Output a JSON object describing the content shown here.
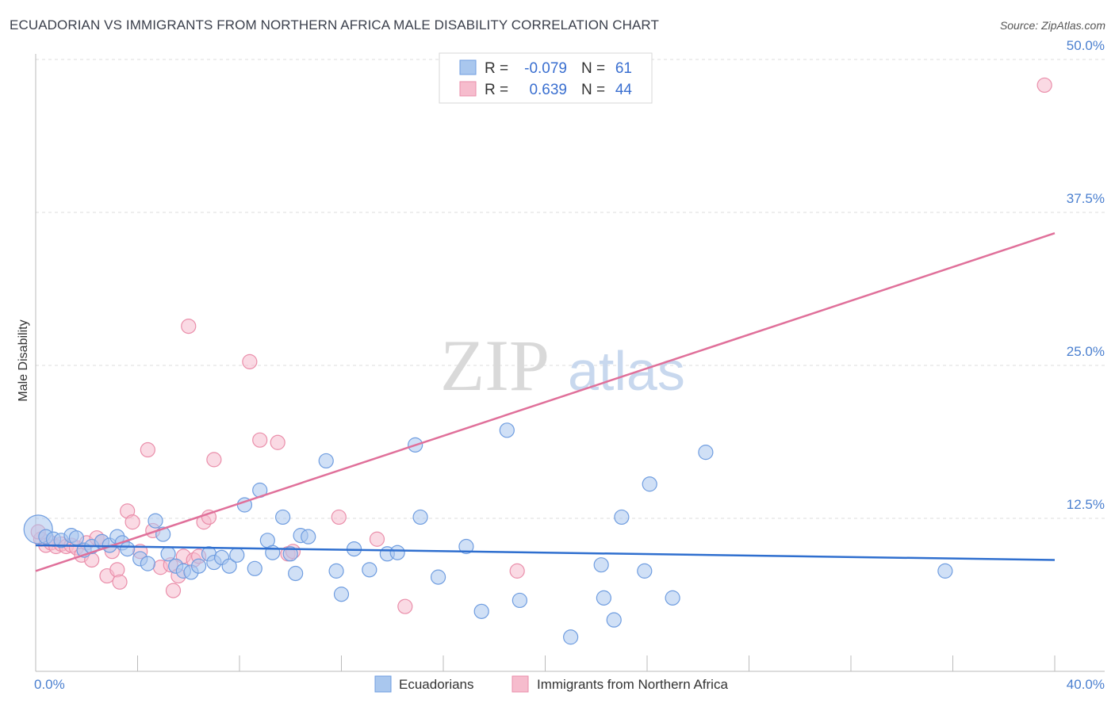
{
  "title": "ECUADORIAN VS IMMIGRANTS FROM NORTHERN AFRICA MALE DISABILITY CORRELATION CHART",
  "source": "Source: ZipAtlas.com",
  "watermark": {
    "zip": "ZIP",
    "atlas": "atlas"
  },
  "colors": {
    "blue_fill": "#a9c7ee",
    "blue_stroke": "#6f9de0",
    "blue_line": "#2f6fcf",
    "pink_fill": "#f6bccd",
    "pink_stroke": "#ea8eaa",
    "pink_line": "#e0709a",
    "axis_label": "#4a7fcf",
    "grid": "#dcdcdc"
  },
  "legend": {
    "r_label": "R =",
    "n_label": "N =",
    "rows": [
      {
        "r": "-0.079",
        "n": "61",
        "color": "blue"
      },
      {
        "r": "0.639",
        "n": "44",
        "color": "pink"
      }
    ]
  },
  "bottom_legend": [
    "Ecuadorians",
    "Immigrants from Northern Africa"
  ],
  "chart_data": {
    "type": "scatter",
    "title": "ECUADORIAN VS IMMIGRANTS FROM NORTHERN AFRICA MALE DISABILITY CORRELATION CHART",
    "xlabel": "",
    "ylabel": "Male Disability",
    "xlim": [
      0,
      40
    ],
    "ylim": [
      0,
      50
    ],
    "x_tick_labels": [
      "0.0%",
      "40.0%"
    ],
    "y_tick_labels": [
      "12.5%",
      "25.0%",
      "37.5%",
      "50.0%"
    ],
    "y_ticks": [
      12.5,
      25.0,
      37.5,
      50.0
    ],
    "grid": true,
    "legend_placement": "top-center",
    "series": [
      {
        "name": "Ecuadorians",
        "color": "blue",
        "r": -0.079,
        "n": 61,
        "trend": {
          "x": [
            0,
            40
          ],
          "y": [
            10.3,
            9.1
          ]
        },
        "points": [
          [
            0.1,
            11.6
          ],
          [
            0.4,
            11.0
          ],
          [
            0.7,
            10.8
          ],
          [
            1.0,
            10.7
          ],
          [
            1.4,
            11.1
          ],
          [
            1.6,
            10.9
          ],
          [
            1.9,
            9.9
          ],
          [
            2.2,
            10.2
          ],
          [
            2.6,
            10.6
          ],
          [
            2.9,
            10.3
          ],
          [
            3.2,
            11.0
          ],
          [
            3.4,
            10.5
          ],
          [
            3.6,
            10.0
          ],
          [
            4.1,
            9.2
          ],
          [
            4.4,
            8.8
          ],
          [
            4.7,
            12.3
          ],
          [
            5.0,
            11.2
          ],
          [
            5.2,
            9.6
          ],
          [
            5.5,
            8.6
          ],
          [
            5.8,
            8.2
          ],
          [
            6.1,
            8.1
          ],
          [
            6.4,
            8.6
          ],
          [
            6.8,
            9.6
          ],
          [
            7.0,
            8.9
          ],
          [
            7.3,
            9.3
          ],
          [
            7.6,
            8.6
          ],
          [
            7.9,
            9.5
          ],
          [
            8.2,
            13.6
          ],
          [
            8.6,
            8.4
          ],
          [
            8.8,
            14.8
          ],
          [
            9.1,
            10.7
          ],
          [
            9.3,
            9.7
          ],
          [
            9.7,
            12.6
          ],
          [
            10.0,
            9.6
          ],
          [
            10.2,
            8.0
          ],
          [
            10.4,
            11.1
          ],
          [
            10.7,
            11.0
          ],
          [
            11.4,
            17.2
          ],
          [
            11.8,
            8.2
          ],
          [
            12.0,
            6.3
          ],
          [
            12.5,
            10.0
          ],
          [
            13.1,
            8.3
          ],
          [
            13.8,
            9.6
          ],
          [
            14.2,
            9.7
          ],
          [
            14.9,
            18.5
          ],
          [
            15.1,
            12.6
          ],
          [
            15.8,
            7.7
          ],
          [
            16.9,
            10.2
          ],
          [
            17.5,
            4.9
          ],
          [
            18.5,
            19.7
          ],
          [
            19.0,
            5.8
          ],
          [
            21.0,
            2.8
          ],
          [
            22.2,
            8.7
          ],
          [
            22.3,
            6.0
          ],
          [
            22.7,
            4.2
          ],
          [
            23.0,
            12.6
          ],
          [
            23.9,
            8.2
          ],
          [
            24.1,
            15.3
          ],
          [
            25.0,
            6.0
          ],
          [
            26.3,
            17.9
          ],
          [
            35.7,
            8.2
          ]
        ]
      },
      {
        "name": "Immigrants from Northern Africa",
        "color": "pink",
        "r": 0.639,
        "n": 44,
        "trend": {
          "x": [
            0,
            40
          ],
          "y": [
            8.2,
            35.8
          ]
        },
        "points": [
          [
            0.2,
            10.8
          ],
          [
            0.4,
            10.3
          ],
          [
            0.6,
            10.5
          ],
          [
            0.8,
            10.2
          ],
          [
            1.0,
            10.4
          ],
          [
            1.2,
            10.2
          ],
          [
            1.4,
            10.3
          ],
          [
            1.6,
            10.1
          ],
          [
            1.8,
            9.5
          ],
          [
            2.0,
            10.5
          ],
          [
            2.2,
            9.1
          ],
          [
            2.4,
            10.9
          ],
          [
            2.6,
            10.6
          ],
          [
            2.8,
            7.8
          ],
          [
            3.0,
            9.8
          ],
          [
            3.2,
            8.3
          ],
          [
            3.3,
            7.3
          ],
          [
            3.6,
            13.1
          ],
          [
            3.8,
            12.2
          ],
          [
            4.1,
            9.8
          ],
          [
            4.4,
            18.1
          ],
          [
            4.6,
            11.5
          ],
          [
            4.9,
            8.5
          ],
          [
            5.3,
            8.7
          ],
          [
            5.4,
            6.6
          ],
          [
            5.6,
            7.8
          ],
          [
            5.8,
            9.4
          ],
          [
            6.0,
            28.2
          ],
          [
            6.2,
            9.1
          ],
          [
            6.4,
            9.4
          ],
          [
            6.6,
            12.2
          ],
          [
            6.8,
            12.6
          ],
          [
            7.0,
            17.3
          ],
          [
            8.4,
            25.3
          ],
          [
            8.8,
            18.9
          ],
          [
            9.5,
            18.7
          ],
          [
            9.9,
            9.6
          ],
          [
            10.1,
            9.8
          ],
          [
            11.9,
            12.6
          ],
          [
            13.4,
            10.8
          ],
          [
            14.5,
            5.3
          ],
          [
            18.9,
            8.2
          ],
          [
            39.6,
            47.9
          ],
          [
            0.1,
            11.4
          ]
        ]
      }
    ]
  }
}
